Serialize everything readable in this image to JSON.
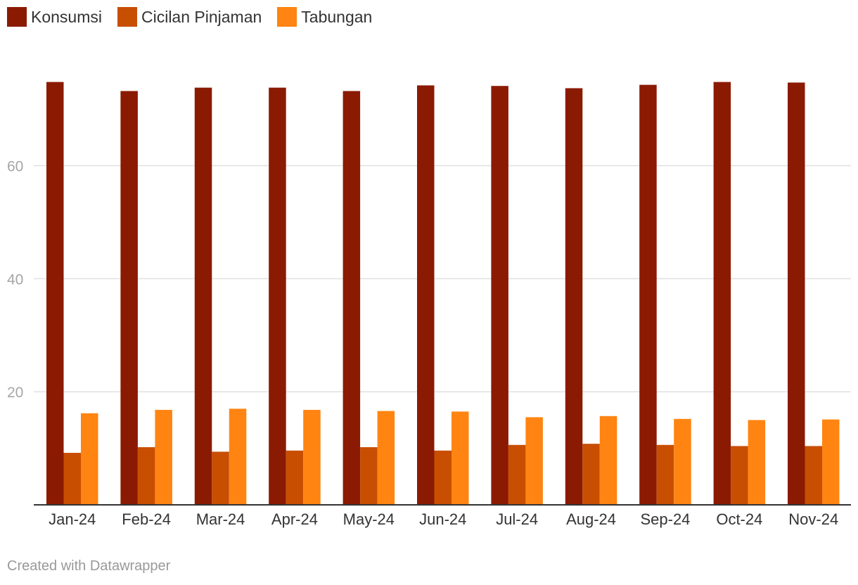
{
  "colors": {
    "Konsumsi": "#8b1a03",
    "Cicilan Pinjaman": "#c84e02",
    "Tabungan": "#ff8411"
  },
  "legend": {
    "items": [
      {
        "label": "Konsumsi",
        "color": "#8b1a03"
      },
      {
        "label": "Cicilan Pinjaman",
        "color": "#c84e02"
      },
      {
        "label": "Tabungan",
        "color": "#ff8411"
      }
    ]
  },
  "footer": {
    "credit": "Created with Datawrapper"
  },
  "chart_data": {
    "type": "bar",
    "categories": [
      "Jan-24",
      "Feb-24",
      "Mar-24",
      "Apr-24",
      "May-24",
      "Jun-24",
      "Jul-24",
      "Aug-24",
      "Sep-24",
      "Oct-24",
      "Nov-24"
    ],
    "series": [
      {
        "name": "Konsumsi",
        "values": [
          74.8,
          73.2,
          73.8,
          73.8,
          73.2,
          74.2,
          74.1,
          73.7,
          74.3,
          74.8,
          74.7
        ]
      },
      {
        "name": "Cicilan Pinjaman",
        "values": [
          9.2,
          10.2,
          9.4,
          9.6,
          10.2,
          9.6,
          10.6,
          10.8,
          10.6,
          10.4,
          10.4
        ]
      },
      {
        "name": "Tabungan",
        "values": [
          16.2,
          16.8,
          17.0,
          16.8,
          16.6,
          16.5,
          15.5,
          15.7,
          15.2,
          15.0,
          15.1
        ]
      }
    ],
    "yticks": [
      20,
      40,
      60
    ],
    "ylim": [
      0,
      80
    ],
    "grid": true,
    "legend_position": "top-left",
    "xlabel": "",
    "ylabel": ""
  }
}
